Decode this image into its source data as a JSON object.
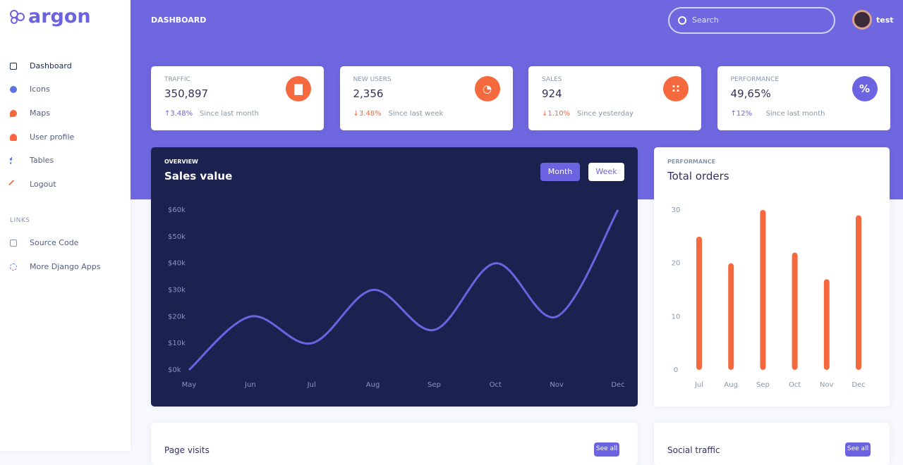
{
  "sidebar": {
    "brand": "argon",
    "nav": [
      "Dashboard",
      "Icons",
      "Maps",
      "User profile",
      "Tables",
      "Logout"
    ],
    "links_heading": "LINKS",
    "links": [
      "Source Code",
      "More Django Apps"
    ]
  },
  "header": {
    "title": "DASHBOARD",
    "search_placeholder": "Search",
    "user": "test"
  },
  "stats": [
    {
      "title": "TRAFFIC",
      "value": "350,897",
      "change": "3.48%",
      "trend": "up",
      "since": "Since last month"
    },
    {
      "title": "NEW USERS",
      "value": "2,356",
      "change": "3.48%",
      "trend": "down",
      "since": "Since last week"
    },
    {
      "title": "SALES",
      "value": "924",
      "change": "1.10%",
      "trend": "down",
      "since": "Since yesterday"
    },
    {
      "title": "PERFORMANCE",
      "value": "49,65%",
      "change": "12%",
      "trend": "up",
      "since": "Since last month"
    }
  ],
  "sales_chart": {
    "type": "line",
    "label": "OVERVIEW",
    "title": "Sales value",
    "buttons": [
      "Month",
      "Week"
    ],
    "categories": [
      "May",
      "Jun",
      "Jul",
      "Aug",
      "Sep",
      "Oct",
      "Nov",
      "Dec"
    ],
    "values": [
      0,
      20,
      10,
      30,
      15,
      40,
      20,
      60
    ],
    "ylim": [
      0,
      60
    ],
    "yticks": [
      {
        "value": 0,
        "label": "$0k"
      },
      {
        "value": 10,
        "label": "$10k"
      },
      {
        "value": 20,
        "label": "$20k"
      },
      {
        "value": 30,
        "label": "$30k"
      },
      {
        "value": 40,
        "label": "$40k"
      },
      {
        "value": 50,
        "label": "$50k"
      },
      {
        "value": 60,
        "label": "$60k"
      }
    ],
    "color": "#6c63e0"
  },
  "orders_chart": {
    "type": "bar",
    "label": "PERFORMANCE",
    "title": "Total orders",
    "categories": [
      "Jul",
      "Aug",
      "Sep",
      "Oct",
      "Nov",
      "Dec"
    ],
    "values": [
      25,
      20,
      30,
      22,
      17,
      29
    ],
    "ylim": [
      0,
      30
    ],
    "yticks": [
      0,
      10,
      20,
      30
    ],
    "color": "#f5693f"
  },
  "bottom": [
    {
      "title": "Page visits",
      "button": "See all"
    },
    {
      "title": "Social traffic",
      "button": "See all"
    }
  ]
}
